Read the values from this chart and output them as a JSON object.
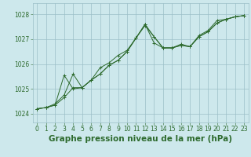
{
  "title": "Graphe pression niveau de la mer (hPa)",
  "bg_color": "#cde8ec",
  "grid_color": "#9bbfc8",
  "line_color": "#2d6a2d",
  "xlim": [
    -0.5,
    23.5
  ],
  "ylim": [
    1023.65,
    1028.45
  ],
  "yticks": [
    1024,
    1025,
    1026,
    1027,
    1028
  ],
  "xticks": [
    0,
    1,
    2,
    3,
    4,
    5,
    6,
    7,
    8,
    9,
    10,
    11,
    12,
    13,
    14,
    15,
    16,
    17,
    18,
    19,
    20,
    21,
    22,
    23
  ],
  "series1": {
    "x": [
      0,
      1,
      2,
      3,
      4,
      5,
      6,
      7,
      8,
      9,
      10,
      11,
      12,
      13,
      14,
      15,
      16,
      17,
      18,
      19,
      20,
      21,
      22,
      23
    ],
    "y": [
      1024.2,
      1024.25,
      1024.35,
      1025.55,
      1025.0,
      1025.05,
      1025.35,
      1025.6,
      1025.95,
      1026.15,
      1026.5,
      1027.05,
      1027.6,
      1027.1,
      1026.65,
      1026.65,
      1026.75,
      1026.7,
      1027.1,
      1027.3,
      1027.65,
      1027.8,
      1027.9,
      1027.95
    ]
  },
  "series2": {
    "x": [
      0,
      1,
      2,
      3,
      4,
      5,
      6,
      7,
      8,
      9,
      10,
      11,
      12,
      13,
      14,
      15,
      16,
      17,
      18,
      19,
      20,
      21,
      22,
      23
    ],
    "y": [
      1024.2,
      1024.25,
      1024.4,
      1024.75,
      1025.6,
      1025.05,
      1025.35,
      1025.85,
      1026.05,
      1026.35,
      1026.55,
      1027.05,
      1027.6,
      1026.85,
      1026.65,
      1026.65,
      1026.75,
      1026.7,
      1027.15,
      1027.35,
      1027.75,
      1027.8,
      1027.9,
      1027.95
    ]
  },
  "series3": {
    "x": [
      0,
      1,
      2,
      3,
      4,
      5,
      6,
      7,
      8,
      9,
      10,
      11,
      12,
      13,
      14,
      15,
      16,
      17,
      18,
      19,
      20,
      21,
      22,
      23
    ],
    "y": [
      1024.2,
      1024.25,
      1024.35,
      1024.65,
      1025.05,
      1025.05,
      1025.35,
      1025.6,
      1025.95,
      1026.15,
      1026.5,
      1027.05,
      1027.55,
      1027.1,
      1026.65,
      1026.65,
      1026.8,
      1026.7,
      1027.1,
      1027.3,
      1027.65,
      1027.8,
      1027.9,
      1027.95
    ]
  },
  "title_fontsize": 7.5,
  "tick_fontsize": 5.5
}
